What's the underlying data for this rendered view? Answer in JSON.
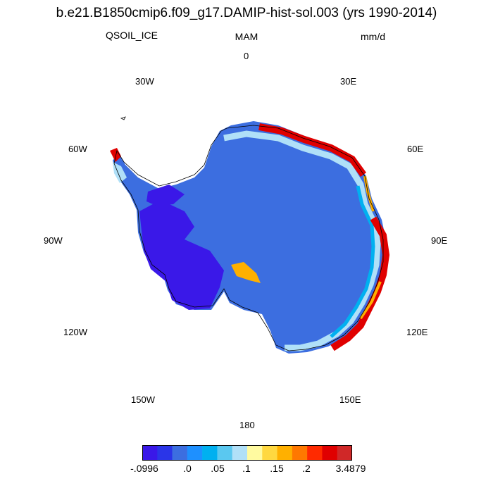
{
  "title": "b.e21.B1850cmip6.f09_g17.DAMIP-hist-sol.003 (yrs 1990-2014)",
  "variable": "QSOIL_ICE",
  "season": "MAM",
  "units": "mm/d",
  "longitude_labels": {
    "n": "0",
    "ne30": "30E",
    "e60": "60E",
    "e90": "90E",
    "e120": "120E",
    "e150": "150E",
    "s": "180",
    "w150": "150W",
    "w120": "120W",
    "w90": "90W",
    "w60": "60W",
    "nw30": "30W"
  },
  "colorbar": {
    "colors": [
      "#3a18e8",
      "#2a35e8",
      "#3c6ee0",
      "#1e90ff",
      "#00b0f0",
      "#5ac8f0",
      "#b0e0f8",
      "#fffaa0",
      "#ffd840",
      "#ffb000",
      "#ff7800",
      "#ff2a00",
      "#e00000",
      "#d02828"
    ],
    "tick_labels": [
      "-.0996",
      ".0",
      ".05",
      ".1",
      ".15",
      ".2",
      "3.4879"
    ]
  },
  "colors": {
    "interior": "#3c6ee0",
    "west_low": "#3a18e8",
    "coast_warm": "#e00000",
    "coast_mid": "#ffb000",
    "coast_light": "#b0e0f8",
    "coast_cyan": "#00b0f0"
  }
}
